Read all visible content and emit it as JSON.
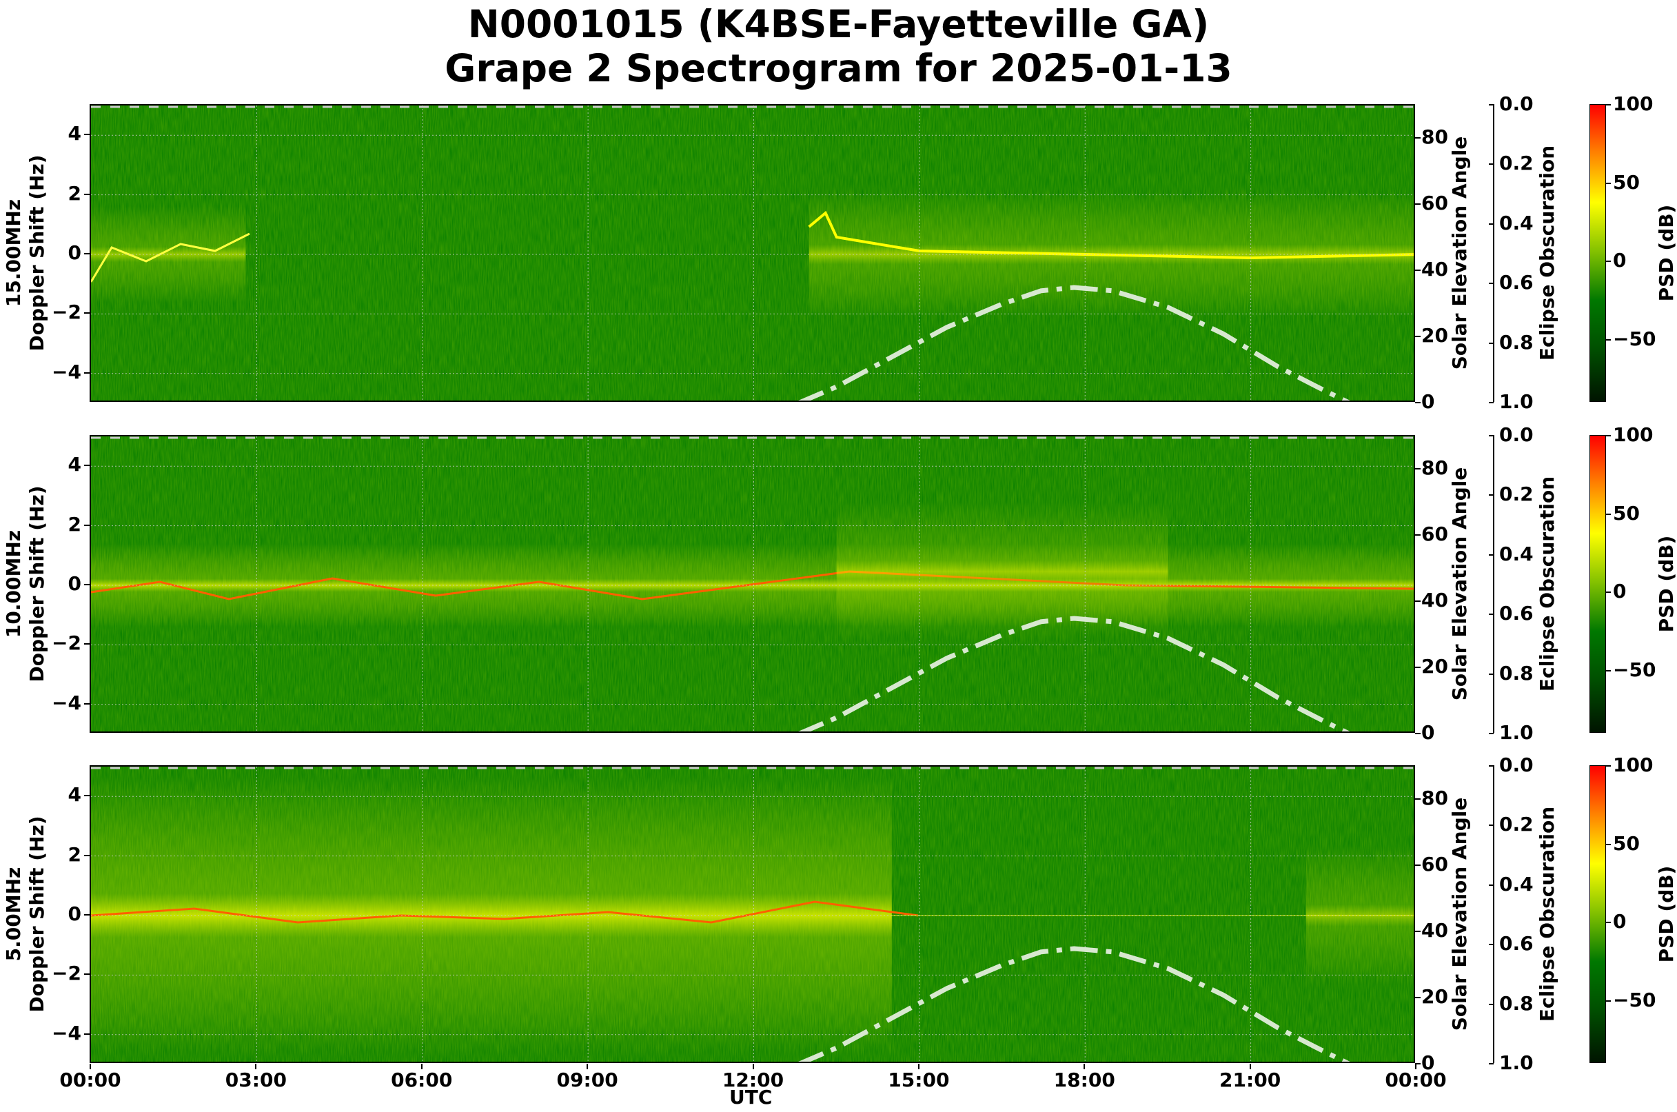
{
  "title": {
    "line1": "N0001015 (K4BSE-Fayetteville GA)",
    "line2": "Grape 2 Spectrogram for 2025-01-13"
  },
  "xaxis": {
    "label": "UTC",
    "ticks": [
      "00:00",
      "03:00",
      "06:00",
      "09:00",
      "12:00",
      "15:00",
      "18:00",
      "21:00",
      "00:00"
    ]
  },
  "yaxis_ticks": [
    "4",
    "2",
    "0",
    "−2",
    "−4"
  ],
  "solar_ticks": [
    "80",
    "60",
    "40",
    "20",
    "0"
  ],
  "eclipse_ticks": [
    "0.0",
    "0.2",
    "0.4",
    "0.6",
    "0.8",
    "1.0"
  ],
  "psd_ticks": [
    "100",
    "50",
    "0",
    "−50"
  ],
  "labels": {
    "doppler": "Doppler Shift (Hz)",
    "solar": "Solar Elevation Angle",
    "eclipse": "Eclipse Obscuration",
    "psd": "PSD (dB)"
  },
  "panels": [
    {
      "freq": "15.00MHz"
    },
    {
      "freq": "10.00MHz"
    },
    {
      "freq": "5.00MHz"
    }
  ],
  "colors": {
    "background_green": "#007a00",
    "signal_yellow": "#ffff00",
    "peak_red": "#ff2000",
    "solar_curve": "#d8e8d0"
  },
  "chart_data": {
    "type": "heatmap",
    "title": "N0001015 (K4BSE-Fayetteville GA) Grape 2 Spectrogram for 2025-01-13",
    "xlabel": "UTC",
    "x_ticks": [
      "00:00",
      "03:00",
      "06:00",
      "09:00",
      "12:00",
      "15:00",
      "18:00",
      "21:00",
      "00:00"
    ],
    "subplots": [
      {
        "name": "15.00MHz",
        "ylabel": "15.00MHz Doppler Shift (Hz)",
        "ylim": [
          -5,
          5
        ],
        "notes": "Weak signal 00:00-02:30 near 0 to -2 Hz; strong signal 13:00-24:00 near 0 Hz with excursion to ~+2 Hz at 13:20"
      },
      {
        "name": "10.00MHz",
        "ylabel": "10.00MHz Doppler Shift (Hz)",
        "ylim": [
          -5,
          5
        ],
        "notes": "Continuous carrier near 0 Hz all day; multipath traces near +/-2 to 3 Hz 04:30-11:00"
      },
      {
        "name": "5.00MHz",
        "ylabel": "5.00MHz Doppler Shift (Hz)",
        "ylim": [
          -5,
          5
        ],
        "notes": "Strong broadband signal 00:00-14:30 around 0 Hz; weak thin carrier 15:00-22:00; returns ~22:30"
      }
    ],
    "right_axes": {
      "solar_elevation": {
        "label": "Solar Elevation Angle",
        "ylim": [
          0,
          90
        ],
        "ticks": [
          0,
          20,
          40,
          60,
          80
        ]
      },
      "eclipse_obscuration": {
        "label": "Eclipse Obscuration",
        "ylim": [
          1.0,
          0.0
        ],
        "ticks": [
          0.0,
          0.2,
          0.4,
          0.6,
          0.8,
          1.0
        ]
      }
    },
    "solar_elevation_curve": {
      "style": "dash-dot, light green-white",
      "x_hours": [
        12.8,
        13.5,
        14.5,
        15.5,
        16.5,
        17.2,
        17.8,
        18.5,
        19.5,
        20.5,
        21.5,
        22.2,
        22.8
      ],
      "values_deg": [
        0,
        5,
        14,
        23,
        30,
        34,
        35,
        34,
        29,
        21,
        11,
        5,
        0
      ]
    },
    "colorbar": {
      "label": "PSD (dB)",
      "range": [
        -90,
        100
      ],
      "ticks": [
        100,
        50,
        0,
        -50
      ],
      "colormap": [
        "#001400",
        "#005000",
        "#007800",
        "#7fbf00",
        "#ffff00",
        "#ff8000",
        "#ff0000"
      ]
    },
    "grid": true
  }
}
